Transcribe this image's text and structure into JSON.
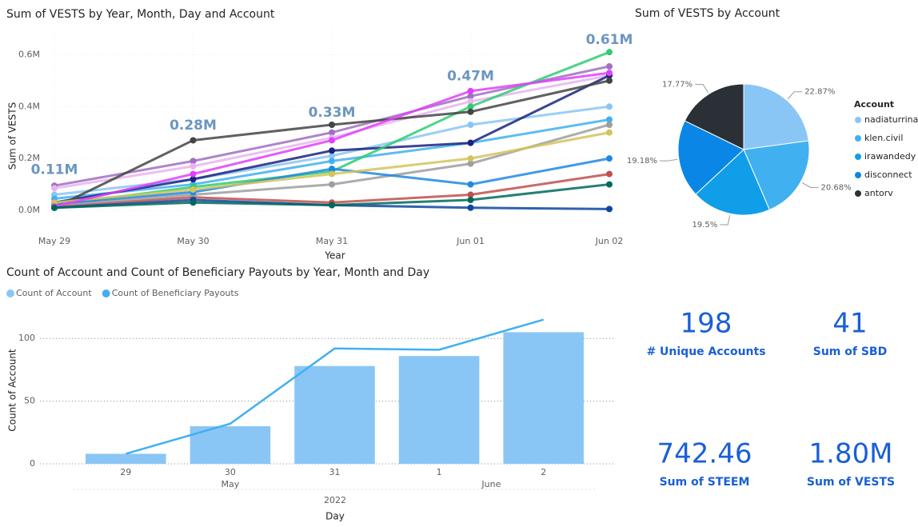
{
  "chart_data": [
    {
      "type": "line",
      "title": "Sum of VESTS by Year, Month, Day and Account",
      "x_label": "Year",
      "y_label": "Sum of VESTS",
      "categories": [
        "May 29",
        "May 30",
        "May 31",
        "Jun 01",
        "Jun 02"
      ],
      "ylim": [
        0,
        700000
      ],
      "yticks": [
        {
          "value": 0,
          "label": "0.0M"
        },
        {
          "value": 200000,
          "label": "0.2M"
        },
        {
          "value": 400000,
          "label": "0.4M"
        },
        {
          "value": 600000,
          "label": "0.6M"
        }
      ],
      "grid": true,
      "totals": {
        "values": [
          110000,
          280000,
          330000,
          470000,
          610000
        ],
        "value_labels": [
          "0.11M",
          "0.28M",
          "0.33M",
          "0.47M",
          "0.61M"
        ]
      },
      "series": [
        {
          "color": "#a070c0",
          "values": [
            95000,
            190000,
            300000,
            440000,
            555000
          ]
        },
        {
          "color": "#e8b4f0",
          "values": [
            85000,
            170000,
            280000,
            420000,
            520000
          ]
        },
        {
          "color": "#8ac6f5",
          "values": [
            60000,
            120000,
            210000,
            330000,
            400000
          ]
        },
        {
          "color": "#41b0f0",
          "values": [
            45000,
            100000,
            190000,
            260000,
            350000
          ]
        },
        {
          "color": "#1a237e",
          "values": [
            30000,
            120000,
            230000,
            260000,
            520000
          ]
        },
        {
          "color": "#2ecc71",
          "values": [
            20000,
            90000,
            150000,
            400000,
            610000
          ]
        },
        {
          "color": "#c0504d",
          "values": [
            15000,
            50000,
            30000,
            60000,
            140000
          ]
        },
        {
          "color": "#444444",
          "values": [
            10000,
            270000,
            330000,
            380000,
            500000
          ]
        },
        {
          "color": "#9e9e9e",
          "values": [
            20000,
            60000,
            100000,
            180000,
            330000
          ]
        },
        {
          "color": "#1e88e5",
          "values": [
            25000,
            70000,
            160000,
            100000,
            200000
          ]
        },
        {
          "color": "#0d47a1",
          "values": [
            10000,
            40000,
            20000,
            10000,
            5000
          ]
        },
        {
          "color": "#d4c35a",
          "values": [
            30000,
            80000,
            140000,
            200000,
            300000
          ]
        },
        {
          "color": "#e040fb",
          "values": [
            15000,
            140000,
            270000,
            460000,
            530000
          ]
        },
        {
          "color": "#00695c",
          "values": [
            10000,
            30000,
            20000,
            40000,
            100000
          ]
        }
      ]
    },
    {
      "type": "pie",
      "title": "Sum of VESTS by Account",
      "legend_title": "Account",
      "categories": [
        "nadiaturrina",
        "klen.civil",
        "irawandedy",
        "disconnect",
        "antorv"
      ],
      "values": [
        22.87,
        20.68,
        19.5,
        19.18,
        17.77
      ],
      "value_labels": [
        "22.87%",
        "20.68%",
        "19.5%",
        "19.18%",
        "17.77%"
      ],
      "colors": [
        "#8ac6f5",
        "#41b0f0",
        "#119ee8",
        "#0a87e6",
        "#2a3035"
      ]
    },
    {
      "type": "bar",
      "title": "Count of Account and Count of Beneficiary Payouts by Year, Month and Day",
      "x_label": "Day",
      "y_label": "Count of Account",
      "categories": [
        "29",
        "30",
        "31",
        "1",
        "2"
      ],
      "months": [
        "May",
        "May",
        "May",
        "June",
        "June"
      ],
      "year": "2022",
      "ylim": [
        0,
        118
      ],
      "yticks": [
        0,
        50,
        100
      ],
      "grid": true,
      "series": [
        {
          "name": "Count of Account",
          "type": "bar",
          "color": "#8ac6f5",
          "values": [
            8,
            30,
            78,
            86,
            105
          ]
        },
        {
          "name": "Count of Beneficiary Payouts",
          "type": "line",
          "color": "#41b0f0",
          "values": [
            8,
            32,
            92,
            91,
            115
          ]
        }
      ]
    }
  ],
  "cards": [
    {
      "value": 198,
      "label": "# Unique Accounts"
    },
    {
      "value": 41,
      "label": "Sum of SBD"
    },
    {
      "value": 742.46,
      "label": "Sum of STEEM"
    },
    {
      "value": 1800000,
      "value_label": "1.80M",
      "label": "Sum of VESTS"
    }
  ]
}
